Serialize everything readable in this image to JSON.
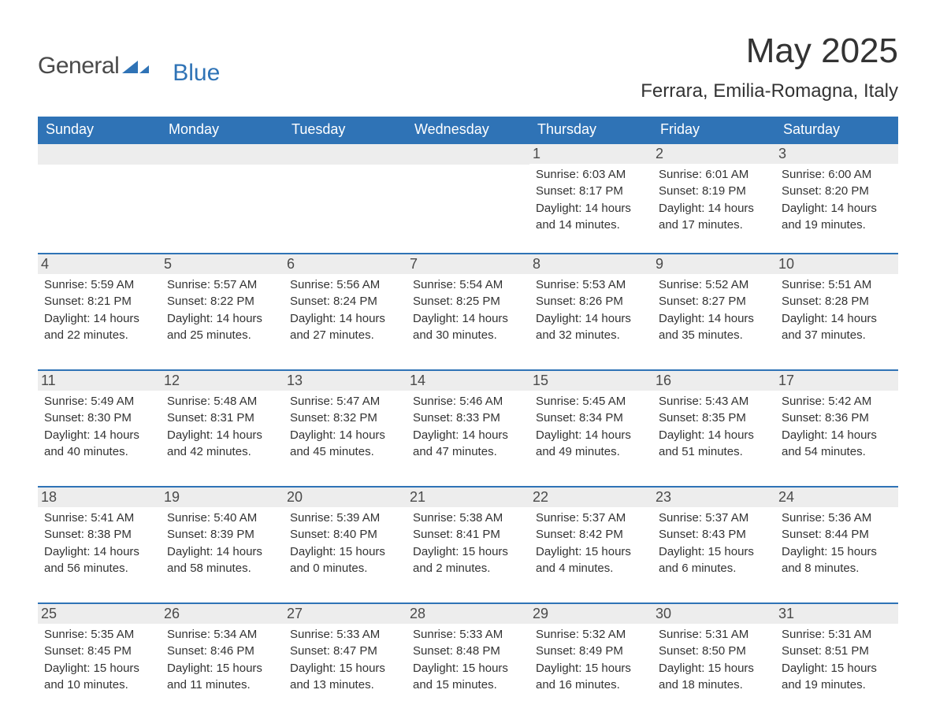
{
  "logo": {
    "text_general": "General",
    "text_blue": "Blue"
  },
  "title": "May 2025",
  "location": "Ferrara, Emilia-Romagna, Italy",
  "colors": {
    "header_bg": "#2f73b6",
    "header_text": "#ffffff",
    "daynum_bg": "#ededed",
    "body_text": "#333333",
    "logo_gray": "#4a4a4a",
    "logo_blue": "#2f73b6",
    "row_border": "#2f73b6"
  },
  "weekdays": [
    "Sunday",
    "Monday",
    "Tuesday",
    "Wednesday",
    "Thursday",
    "Friday",
    "Saturday"
  ],
  "weeks": [
    [
      null,
      null,
      null,
      null,
      {
        "n": "1",
        "sunrise": "Sunrise: 6:03 AM",
        "sunset": "Sunset: 8:17 PM",
        "daylight1": "Daylight: 14 hours",
        "daylight2": "and 14 minutes."
      },
      {
        "n": "2",
        "sunrise": "Sunrise: 6:01 AM",
        "sunset": "Sunset: 8:19 PM",
        "daylight1": "Daylight: 14 hours",
        "daylight2": "and 17 minutes."
      },
      {
        "n": "3",
        "sunrise": "Sunrise: 6:00 AM",
        "sunset": "Sunset: 8:20 PM",
        "daylight1": "Daylight: 14 hours",
        "daylight2": "and 19 minutes."
      }
    ],
    [
      {
        "n": "4",
        "sunrise": "Sunrise: 5:59 AM",
        "sunset": "Sunset: 8:21 PM",
        "daylight1": "Daylight: 14 hours",
        "daylight2": "and 22 minutes."
      },
      {
        "n": "5",
        "sunrise": "Sunrise: 5:57 AM",
        "sunset": "Sunset: 8:22 PM",
        "daylight1": "Daylight: 14 hours",
        "daylight2": "and 25 minutes."
      },
      {
        "n": "6",
        "sunrise": "Sunrise: 5:56 AM",
        "sunset": "Sunset: 8:24 PM",
        "daylight1": "Daylight: 14 hours",
        "daylight2": "and 27 minutes."
      },
      {
        "n": "7",
        "sunrise": "Sunrise: 5:54 AM",
        "sunset": "Sunset: 8:25 PM",
        "daylight1": "Daylight: 14 hours",
        "daylight2": "and 30 minutes."
      },
      {
        "n": "8",
        "sunrise": "Sunrise: 5:53 AM",
        "sunset": "Sunset: 8:26 PM",
        "daylight1": "Daylight: 14 hours",
        "daylight2": "and 32 minutes."
      },
      {
        "n": "9",
        "sunrise": "Sunrise: 5:52 AM",
        "sunset": "Sunset: 8:27 PM",
        "daylight1": "Daylight: 14 hours",
        "daylight2": "and 35 minutes."
      },
      {
        "n": "10",
        "sunrise": "Sunrise: 5:51 AM",
        "sunset": "Sunset: 8:28 PM",
        "daylight1": "Daylight: 14 hours",
        "daylight2": "and 37 minutes."
      }
    ],
    [
      {
        "n": "11",
        "sunrise": "Sunrise: 5:49 AM",
        "sunset": "Sunset: 8:30 PM",
        "daylight1": "Daylight: 14 hours",
        "daylight2": "and 40 minutes."
      },
      {
        "n": "12",
        "sunrise": "Sunrise: 5:48 AM",
        "sunset": "Sunset: 8:31 PM",
        "daylight1": "Daylight: 14 hours",
        "daylight2": "and 42 minutes."
      },
      {
        "n": "13",
        "sunrise": "Sunrise: 5:47 AM",
        "sunset": "Sunset: 8:32 PM",
        "daylight1": "Daylight: 14 hours",
        "daylight2": "and 45 minutes."
      },
      {
        "n": "14",
        "sunrise": "Sunrise: 5:46 AM",
        "sunset": "Sunset: 8:33 PM",
        "daylight1": "Daylight: 14 hours",
        "daylight2": "and 47 minutes."
      },
      {
        "n": "15",
        "sunrise": "Sunrise: 5:45 AM",
        "sunset": "Sunset: 8:34 PM",
        "daylight1": "Daylight: 14 hours",
        "daylight2": "and 49 minutes."
      },
      {
        "n": "16",
        "sunrise": "Sunrise: 5:43 AM",
        "sunset": "Sunset: 8:35 PM",
        "daylight1": "Daylight: 14 hours",
        "daylight2": "and 51 minutes."
      },
      {
        "n": "17",
        "sunrise": "Sunrise: 5:42 AM",
        "sunset": "Sunset: 8:36 PM",
        "daylight1": "Daylight: 14 hours",
        "daylight2": "and 54 minutes."
      }
    ],
    [
      {
        "n": "18",
        "sunrise": "Sunrise: 5:41 AM",
        "sunset": "Sunset: 8:38 PM",
        "daylight1": "Daylight: 14 hours",
        "daylight2": "and 56 minutes."
      },
      {
        "n": "19",
        "sunrise": "Sunrise: 5:40 AM",
        "sunset": "Sunset: 8:39 PM",
        "daylight1": "Daylight: 14 hours",
        "daylight2": "and 58 minutes."
      },
      {
        "n": "20",
        "sunrise": "Sunrise: 5:39 AM",
        "sunset": "Sunset: 8:40 PM",
        "daylight1": "Daylight: 15 hours",
        "daylight2": "and 0 minutes."
      },
      {
        "n": "21",
        "sunrise": "Sunrise: 5:38 AM",
        "sunset": "Sunset: 8:41 PM",
        "daylight1": "Daylight: 15 hours",
        "daylight2": "and 2 minutes."
      },
      {
        "n": "22",
        "sunrise": "Sunrise: 5:37 AM",
        "sunset": "Sunset: 8:42 PM",
        "daylight1": "Daylight: 15 hours",
        "daylight2": "and 4 minutes."
      },
      {
        "n": "23",
        "sunrise": "Sunrise: 5:37 AM",
        "sunset": "Sunset: 8:43 PM",
        "daylight1": "Daylight: 15 hours",
        "daylight2": "and 6 minutes."
      },
      {
        "n": "24",
        "sunrise": "Sunrise: 5:36 AM",
        "sunset": "Sunset: 8:44 PM",
        "daylight1": "Daylight: 15 hours",
        "daylight2": "and 8 minutes."
      }
    ],
    [
      {
        "n": "25",
        "sunrise": "Sunrise: 5:35 AM",
        "sunset": "Sunset: 8:45 PM",
        "daylight1": "Daylight: 15 hours",
        "daylight2": "and 10 minutes."
      },
      {
        "n": "26",
        "sunrise": "Sunrise: 5:34 AM",
        "sunset": "Sunset: 8:46 PM",
        "daylight1": "Daylight: 15 hours",
        "daylight2": "and 11 minutes."
      },
      {
        "n": "27",
        "sunrise": "Sunrise: 5:33 AM",
        "sunset": "Sunset: 8:47 PM",
        "daylight1": "Daylight: 15 hours",
        "daylight2": "and 13 minutes."
      },
      {
        "n": "28",
        "sunrise": "Sunrise: 5:33 AM",
        "sunset": "Sunset: 8:48 PM",
        "daylight1": "Daylight: 15 hours",
        "daylight2": "and 15 minutes."
      },
      {
        "n": "29",
        "sunrise": "Sunrise: 5:32 AM",
        "sunset": "Sunset: 8:49 PM",
        "daylight1": "Daylight: 15 hours",
        "daylight2": "and 16 minutes."
      },
      {
        "n": "30",
        "sunrise": "Sunrise: 5:31 AM",
        "sunset": "Sunset: 8:50 PM",
        "daylight1": "Daylight: 15 hours",
        "daylight2": "and 18 minutes."
      },
      {
        "n": "31",
        "sunrise": "Sunrise: 5:31 AM",
        "sunset": "Sunset: 8:51 PM",
        "daylight1": "Daylight: 15 hours",
        "daylight2": "and 19 minutes."
      }
    ]
  ]
}
